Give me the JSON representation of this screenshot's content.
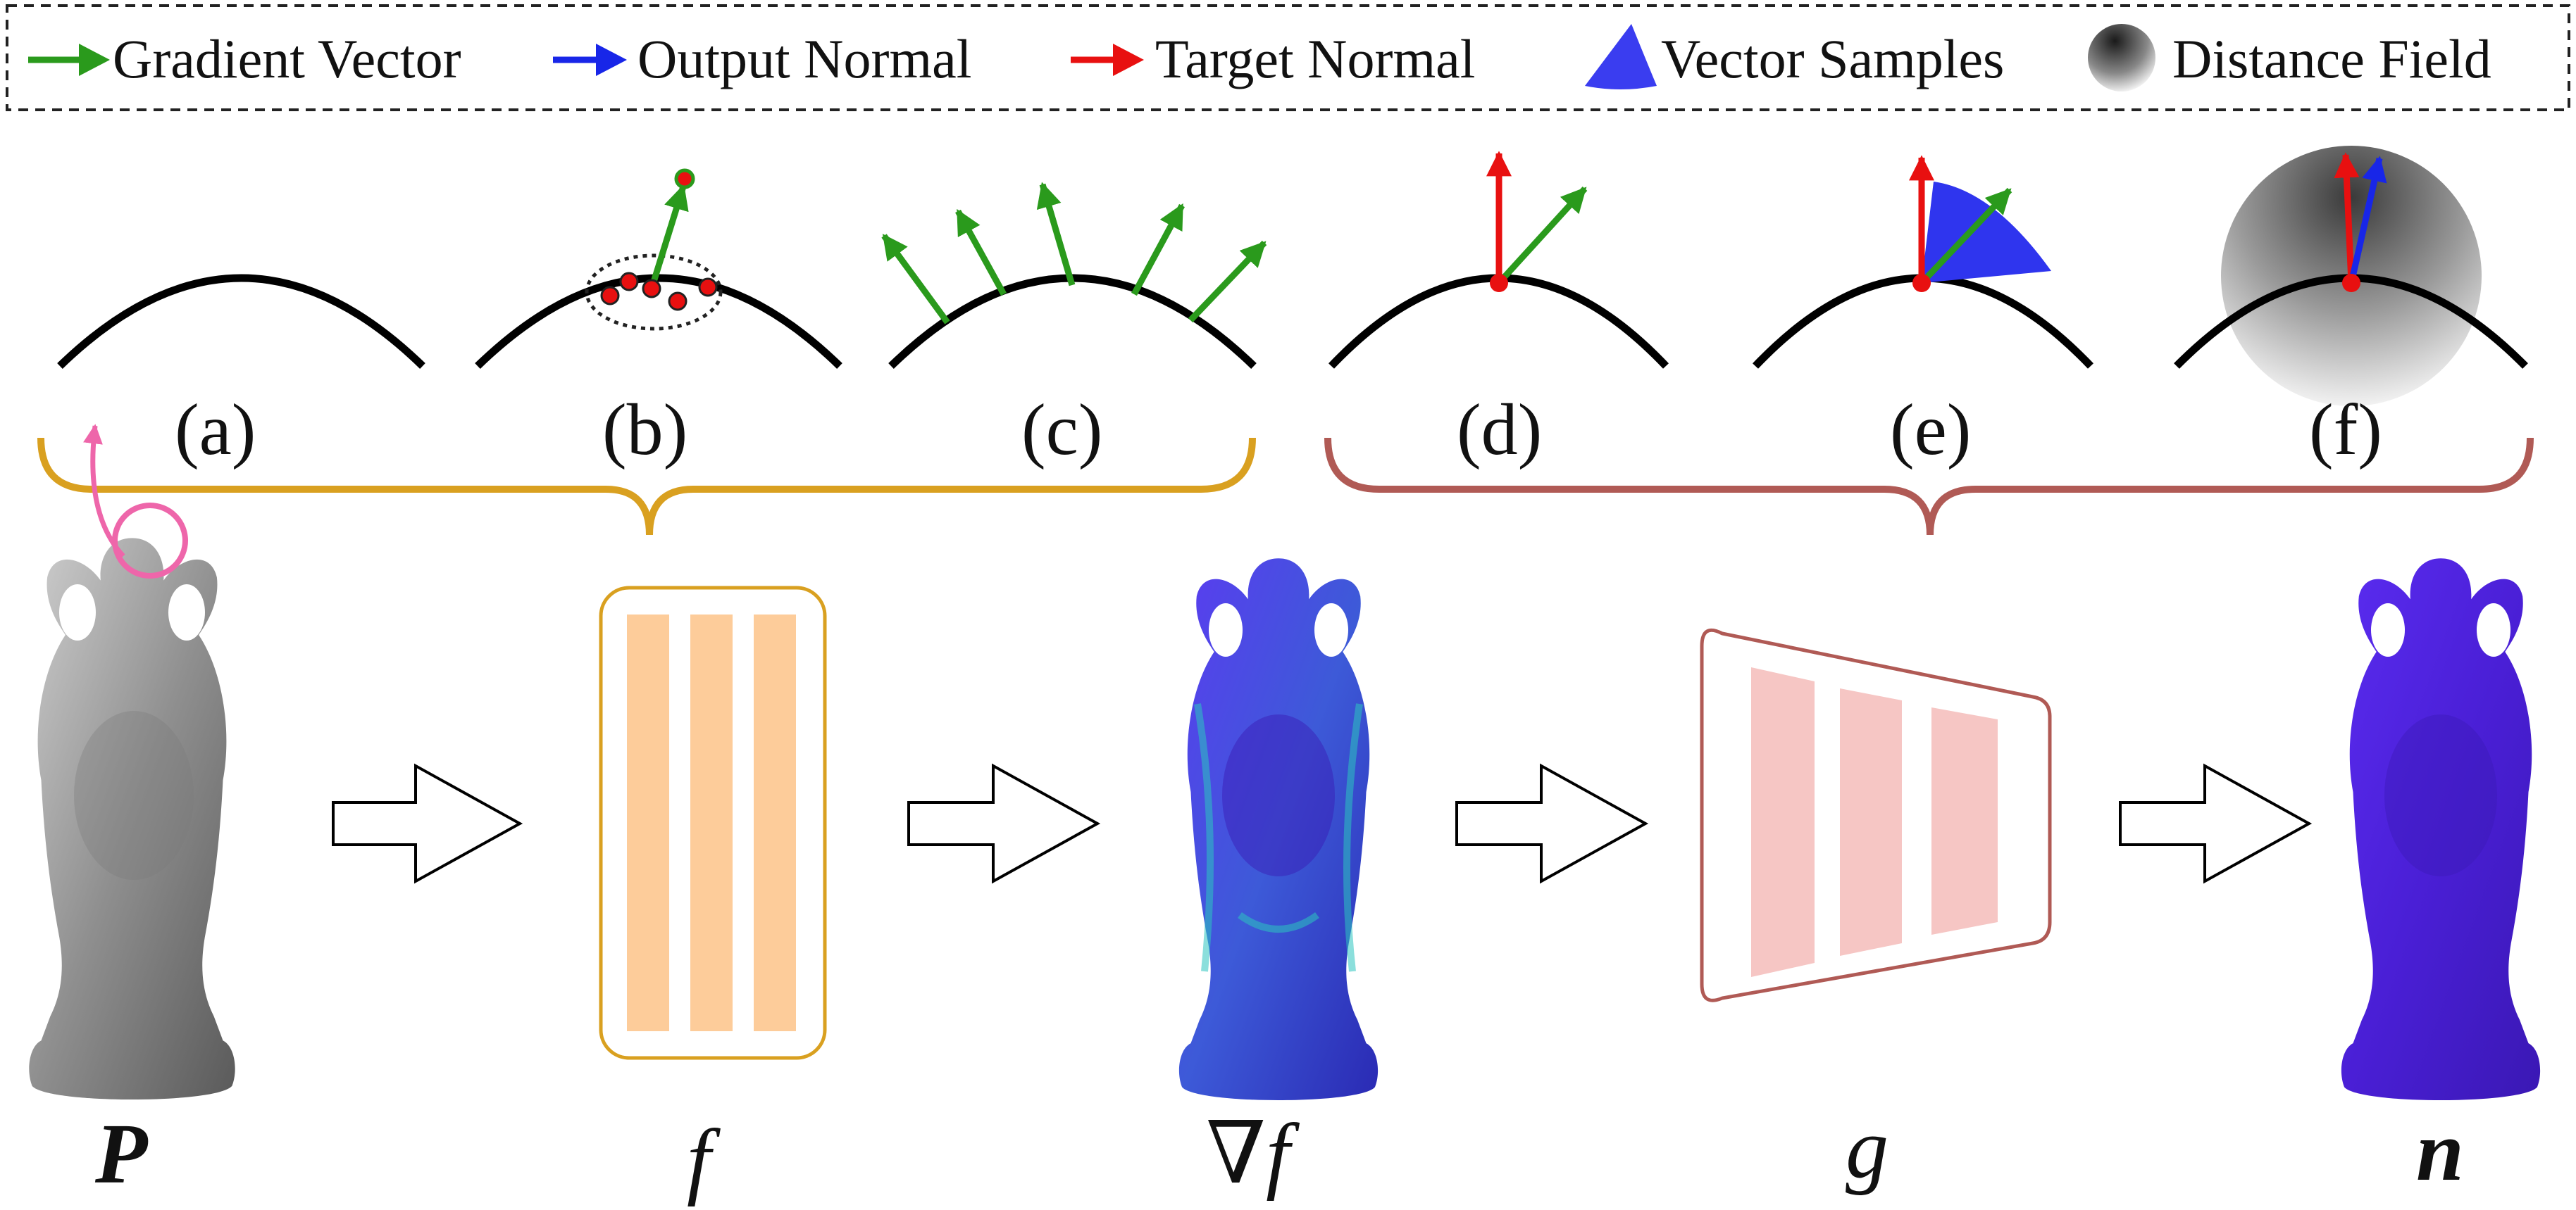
{
  "legend": {
    "items": [
      {
        "label": "Gradient Vector",
        "icon": "green-arrow-icon",
        "color": "#2a9a1c"
      },
      {
        "label": "Output Normal",
        "icon": "blue-arrow-icon",
        "color": "#1826e8"
      },
      {
        "label": "Target Normal",
        "icon": "red-arrow-icon",
        "color": "#e81010"
      },
      {
        "label": "Vector Samples",
        "icon": "blue-sector-icon",
        "color": "#3a3df0"
      },
      {
        "label": "Distance Field",
        "icon": "gray-gradient-circle-icon",
        "color": "#555555"
      }
    ]
  },
  "panels": [
    "(a)",
    "(b)",
    "(c)",
    "(d)",
    "(e)",
    "(f)"
  ],
  "pipeline": {
    "input_label": "P",
    "network_f_label": "f",
    "gradient_label": "∇f",
    "network_g_label": "g",
    "output_label": "n"
  },
  "colors": {
    "brace_left": "#d9a020",
    "brace_right": "#b05a55",
    "network_f_fill": "#fdcc9a",
    "network_f_border": "#d9a020",
    "network_g_fill": "#f6c6c4",
    "network_g_border": "#b05a55",
    "pink_marker": "#ee66aa"
  }
}
